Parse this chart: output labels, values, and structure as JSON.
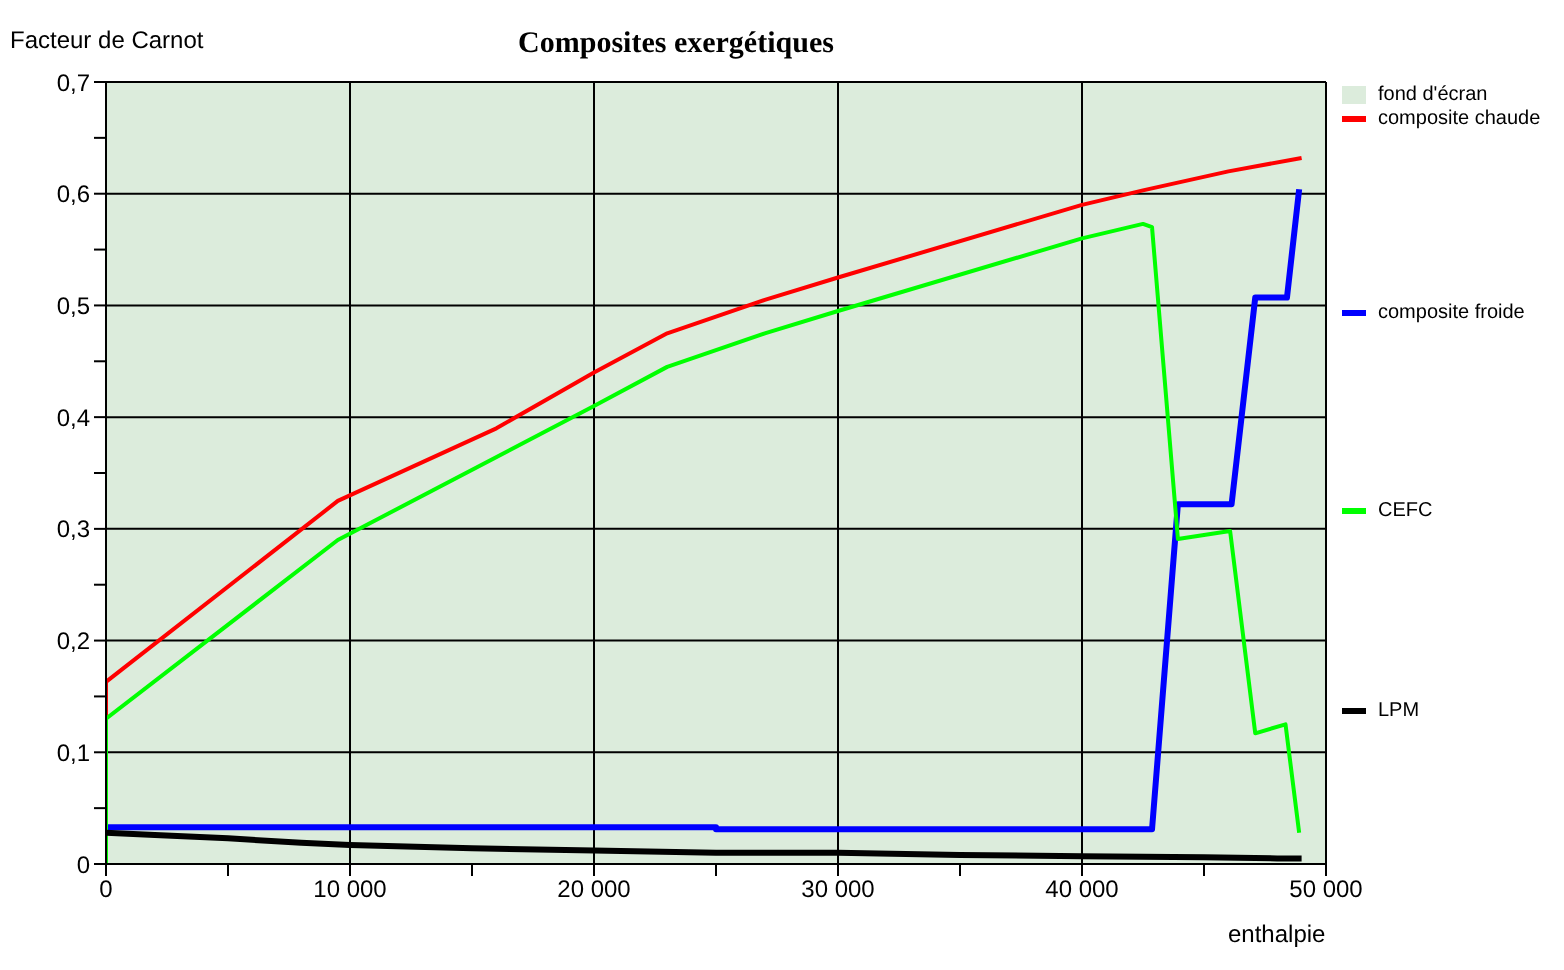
{
  "chart_data": {
    "type": "line",
    "title": "Composites exergétiques",
    "xlabel": "enthalpie",
    "ylabel": "Facteur de Carnot",
    "xlim": [
      0,
      50000
    ],
    "xticks": [
      0,
      {
        "value": 5000,
        "label": null
      },
      {
        "value": 10000,
        "label": "10 000"
      },
      {
        "value": 15000,
        "label": null
      },
      {
        "value": 20000,
        "label": "20 000"
      },
      {
        "value": 25000,
        "label": null
      },
      {
        "value": 30000,
        "label": "30 000"
      },
      {
        "value": 35000,
        "label": null
      },
      {
        "value": 40000,
        "label": "40 000"
      },
      {
        "value": 45000,
        "label": null
      },
      {
        "value": 50000,
        "label": "50 000"
      }
    ],
    "ylim": [
      0,
      0.7
    ],
    "yticks": [
      0,
      {
        "value": 0.05,
        "label": null
      },
      {
        "value": 0.1,
        "label": "0,1"
      },
      {
        "value": 0.15,
        "label": null
      },
      {
        "value": 0.2,
        "label": "0,2"
      },
      {
        "value": 0.25,
        "label": null
      },
      {
        "value": 0.3,
        "label": "0,3"
      },
      {
        "value": 0.35,
        "label": null
      },
      {
        "value": 0.4,
        "label": "0,4"
      },
      {
        "value": 0.45,
        "label": null
      },
      {
        "value": 0.5,
        "label": "0,5"
      },
      {
        "value": 0.55,
        "label": null
      },
      {
        "value": 0.6,
        "label": "0,6"
      },
      {
        "value": 0.65,
        "label": null
      },
      {
        "value": 0.7,
        "label": "0,7"
      }
    ],
    "grid": true,
    "legend": "right",
    "marker": "none",
    "line_style": "solid",
    "bands": [
      {
        "axis": "x",
        "from": 0,
        "to": 50000,
        "label": "fond d'écran",
        "color": "#dcecdc"
      }
    ],
    "series": [
      {
        "name": "composite chaude",
        "color": "#ff0000",
        "x": [
          0,
          0,
          9500,
          16000,
          20000,
          23000,
          27000,
          30000,
          40000,
          42500,
          46000,
          49000
        ],
        "values": [
          0.13,
          0.163,
          0.325,
          0.39,
          0.44,
          0.475,
          0.505,
          0.525,
          0.59,
          0.603,
          0.62,
          0.632
        ]
      },
      {
        "name": "composite froide",
        "color": "#0000ff",
        "x": [
          0,
          25000,
          25000,
          42870,
          43930,
          46130,
          47100,
          48400,
          48900
        ],
        "values": [
          0.033,
          0.033,
          0.031,
          0.031,
          0.322,
          0.322,
          0.507,
          0.507,
          0.604
        ]
      },
      {
        "name": "CEFC",
        "color": "#00ff00",
        "x": [
          0,
          0,
          9500,
          20000,
          23000,
          27000,
          30000,
          40000,
          42500,
          42870,
          43930,
          46070,
          47100,
          48340,
          48900
        ],
        "values": [
          0,
          0.13,
          0.29,
          0.41,
          0.445,
          0.475,
          0.495,
          0.56,
          0.573,
          0.57,
          0.291,
          0.298,
          0.117,
          0.125,
          0.028
        ]
      },
      {
        "name": "LPM",
        "color": "#000000",
        "x": [
          0,
          2000,
          5000,
          8000,
          10000,
          15000,
          20000,
          25000,
          30000,
          35000,
          40000,
          45000,
          48000,
          49000
        ],
        "values": [
          0.028,
          0.026,
          0.023,
          0.019,
          0.017,
          0.014,
          0.012,
          0.01,
          0.01,
          0.008,
          0.007,
          0.006,
          0.005,
          0.005
        ]
      }
    ]
  }
}
